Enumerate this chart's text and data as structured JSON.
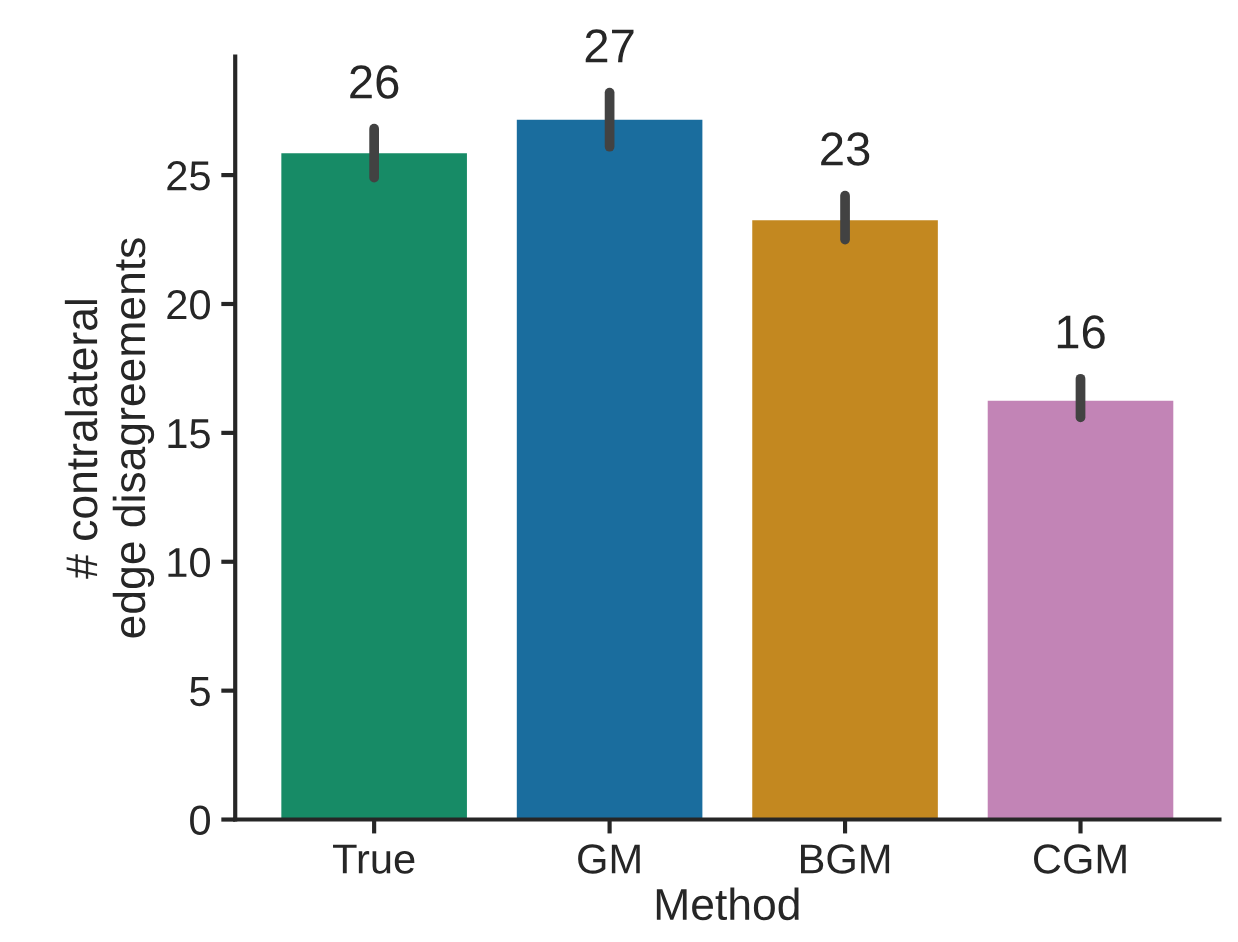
{
  "chart_data": {
    "type": "bar",
    "xlabel": "Method",
    "ylabel": "# contralateral\nedge disagreements",
    "categories": [
      "True",
      "GM",
      "BGM",
      "CGM"
    ],
    "values": [
      25.9,
      27.2,
      23.3,
      16.3
    ],
    "colors": [
      "#178b66",
      "#1a6d9e",
      "#c38820",
      "#c284b6"
    ],
    "errors": [
      [
        24.9,
        26.8
      ],
      [
        26.1,
        28.2
      ],
      [
        22.5,
        24.2
      ],
      [
        15.6,
        17.1
      ]
    ],
    "value_labels": [
      "26",
      "27",
      "23",
      "16"
    ],
    "ylim": [
      0,
      29.6
    ],
    "yticks": [
      0,
      5,
      10,
      15,
      20,
      25
    ],
    "grid": false,
    "legend": false
  }
}
